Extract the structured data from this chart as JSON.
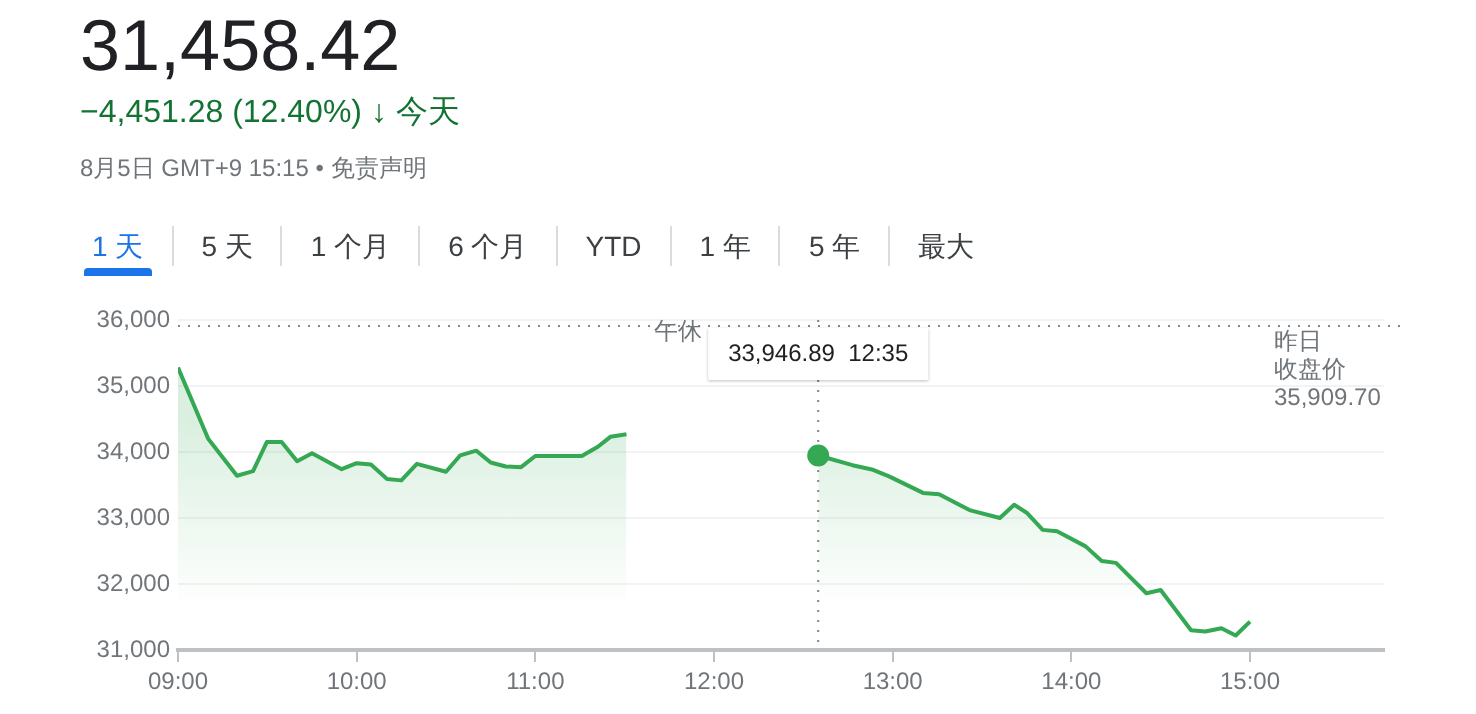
{
  "chart_data": {
    "type": "area",
    "title": "31,458.42",
    "subtitle": "−4,451.28 (12.40%) ↓ 今天",
    "annotations": [
      "8月5日 GMT+9 15:15 • 免责声明",
      "1 天",
      "5 天",
      "1 个月",
      "6 个月",
      "YTD",
      "1 年",
      "5 年",
      "最大",
      "午休",
      "33,946.89  12:35"
    ],
    "series": [
      {
        "color": "#34a853",
        "x": [
          9,
          9.169,
          9.33,
          9.42,
          9.497,
          9.58,
          9.667,
          9.75,
          9.916,
          10,
          10.08,
          10.17,
          10.25,
          10.337,
          10.5,
          10.58,
          10.67,
          10.75,
          10.835,
          10.92,
          11,
          11.26,
          11.35,
          11.42,
          11.51,
          12,
          12.5833,
          12.775,
          12.89,
          12.98,
          13.17,
          13.26,
          13.43,
          13.6,
          13.68,
          13.75,
          13.84,
          13.92,
          14.08,
          14.17,
          14.25,
          14.42,
          14.5,
          14.67,
          14.75,
          14.84,
          14.92,
          15
        ],
        "values": [
          35280,
          34200,
          33640,
          33710,
          34150,
          34150,
          33860,
          33980,
          33740,
          33830,
          33810,
          33590,
          33570,
          33820,
          33700,
          33950,
          34020,
          33840,
          33780,
          33770,
          33940,
          33940,
          34080,
          34230,
          34270,
          null,
          33946.89,
          33800,
          33730,
          33630,
          33380,
          33360,
          33120,
          33000,
          33200,
          33080,
          32820,
          32800,
          32570,
          32350,
          32320,
          31860,
          31910,
          31300,
          31280,
          31330,
          31220,
          31430
        ]
      },
      {
        "type": "scatter",
        "color": "#34a853",
        "marker": "circle",
        "x": [
          12.5833
        ],
        "values": [
          33946.89
        ]
      }
    ],
    "xlim": [
      9,
      15.75
    ],
    "xticks": [
      {
        "value": 9,
        "label": "09:00"
      },
      {
        "value": 10,
        "label": "10:00"
      },
      {
        "value": 11,
        "label": "11:00"
      },
      {
        "value": 12,
        "label": "12:00"
      },
      {
        "value": 13,
        "label": "13:00"
      },
      {
        "value": 14,
        "label": "14:00"
      },
      {
        "value": 15,
        "label": "15:00"
      }
    ],
    "ylim": [
      31000,
      36000
    ],
    "yticks": [
      {
        "value": 31000,
        "label": "31,000"
      },
      {
        "value": 32000,
        "label": "32,000"
      },
      {
        "value": 33000,
        "label": "33,000"
      },
      {
        "value": 34000,
        "label": "34,000"
      },
      {
        "value": 35000,
        "label": "35,000"
      },
      {
        "value": 36000,
        "label": "36,000"
      }
    ],
    "ref_lines": [
      {
        "axis": "y",
        "value": 35909.7,
        "label": "昨日收盘价\n35,909.70",
        "line_style": "dotted"
      },
      {
        "axis": "x",
        "value": 12.5833,
        "line_style": "dotted"
      }
    ],
    "grid": "y",
    "legend": false,
    "marker": "none",
    "line_style": "solid"
  }
}
